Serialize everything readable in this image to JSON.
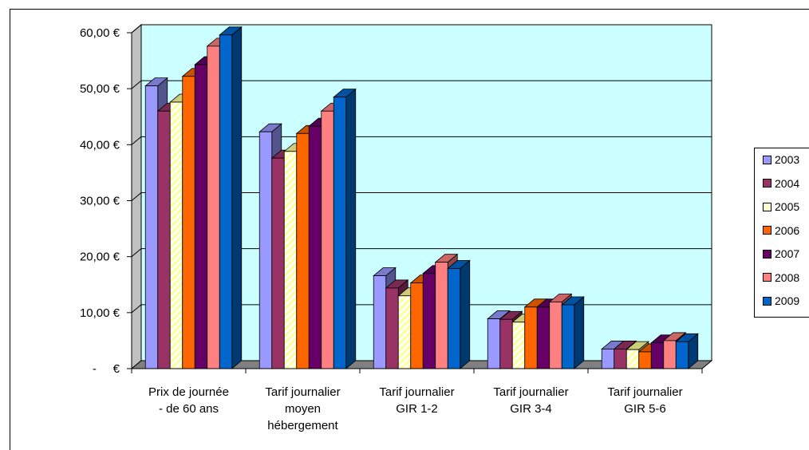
{
  "chart_data": {
    "type": "bar",
    "title": "",
    "xlabel": "",
    "ylabel": "",
    "ylim": [
      0,
      60
    ],
    "y_tick_labels": [
      "-     €",
      "10,00 €",
      "20,00 €",
      "30,00 €",
      "40,00 €",
      "50,00 €",
      "60,00 €"
    ],
    "categories": [
      [
        "Prix de journée",
        "- de 60 ans"
      ],
      [
        "Tarif journalier",
        "moyen",
        "hébergement"
      ],
      [
        "Tarif journalier",
        "GIR 1-2"
      ],
      [
        "Tarif journalier",
        "GIR 3-4"
      ],
      [
        "Tarif journalier",
        "GIR 5-6"
      ]
    ],
    "series": [
      {
        "name": "2003",
        "color": "#9999ff",
        "values": [
          50.5,
          42.3,
          16.6,
          8.9,
          3.5
        ]
      },
      {
        "name": "2004",
        "color": "#993366",
        "values": [
          46.0,
          37.6,
          14.4,
          8.8,
          3.5
        ]
      },
      {
        "name": "2005",
        "color": "#ffff99",
        "hatch": true,
        "values": [
          47.6,
          38.8,
          13.0,
          8.3,
          3.4
        ]
      },
      {
        "name": "2006",
        "color": "#ff6600",
        "values": [
          52.2,
          42.0,
          15.3,
          11.0,
          3.0
        ]
      },
      {
        "name": "2007",
        "color": "#660066",
        "values": [
          54.3,
          43.3,
          17.0,
          11.0,
          4.6
        ]
      },
      {
        "name": "2008",
        "color": "#ff8080",
        "values": [
          57.6,
          46.0,
          19.0,
          11.9,
          5.0
        ]
      },
      {
        "name": "2009",
        "color": "#0066cc",
        "values": [
          59.6,
          48.5,
          17.9,
          11.4,
          4.8
        ]
      }
    ],
    "legend_position": "right",
    "grid": true,
    "plot_background": "#ccffff"
  }
}
